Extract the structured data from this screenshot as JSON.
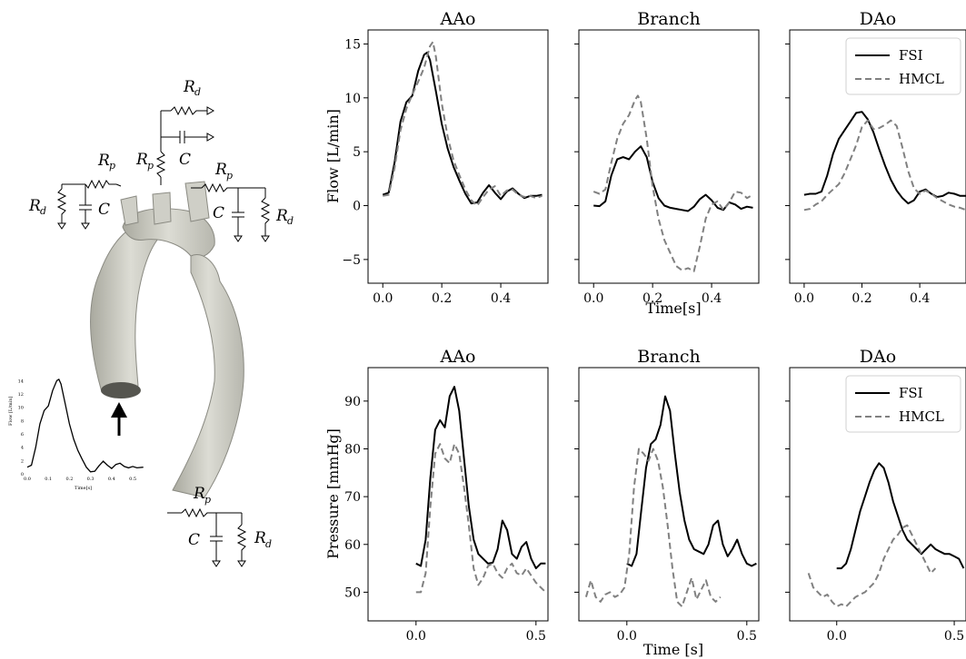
{
  "illustration": {
    "circuit_labels": {
      "rd": "R",
      "rd_sub": "d",
      "rp": "R",
      "rp_sub": "p",
      "c": "C"
    },
    "inset": {
      "xlabel": "Time[s]",
      "ylabel": "Flow [L/min]",
      "xticks": [
        "0.0",
        "0.1",
        "0.2",
        "0.3",
        "0.4",
        "0.5"
      ],
      "yticks": [
        "0",
        "2",
        "4",
        "6",
        "8",
        "10",
        "12",
        "14"
      ],
      "x": [
        0.0,
        0.02,
        0.04,
        0.06,
        0.08,
        0.1,
        0.12,
        0.14,
        0.15,
        0.16,
        0.18,
        0.2,
        0.22,
        0.24,
        0.26,
        0.28,
        0.3,
        0.32,
        0.34,
        0.36,
        0.38,
        0.4,
        0.42,
        0.44,
        0.46,
        0.48,
        0.5,
        0.52,
        0.55
      ],
      "y": [
        1.0,
        1.3,
        4.0,
        7.5,
        9.5,
        10.2,
        12.5,
        14.0,
        14.2,
        13.5,
        10.5,
        7.5,
        5.2,
        3.5,
        2.2,
        1.0,
        0.3,
        0.4,
        1.2,
        1.9,
        1.3,
        0.8,
        1.4,
        1.6,
        1.1,
        0.9,
        1.1,
        0.9,
        1.0
      ]
    }
  },
  "legend": {
    "series": [
      "FSI",
      "HMCL"
    ]
  },
  "chart_data": [
    {
      "type": "line",
      "title": "AAo",
      "xlabel": "",
      "ylabel": "Flow [L/min]",
      "xlim": [
        -0.05,
        0.56
      ],
      "ylim": [
        -7.2,
        16.3
      ],
      "xticks": [
        0.0,
        0.2,
        0.4
      ],
      "xtick_labels": [
        "0.0",
        "0.2",
        "0.4"
      ],
      "yticks": [
        -5,
        0,
        5,
        10,
        15
      ],
      "ytick_labels": [
        "−5",
        "0",
        "5",
        "10",
        "15"
      ],
      "legend": false,
      "series": [
        {
          "name": "FSI",
          "style": "solid",
          "x": [
            0.0,
            0.02,
            0.04,
            0.06,
            0.08,
            0.1,
            0.12,
            0.14,
            0.15,
            0.16,
            0.18,
            0.2,
            0.22,
            0.24,
            0.26,
            0.28,
            0.3,
            0.32,
            0.34,
            0.36,
            0.38,
            0.4,
            0.42,
            0.44,
            0.46,
            0.48,
            0.5,
            0.52,
            0.54
          ],
          "y": [
            1.0,
            1.2,
            4.0,
            7.8,
            9.6,
            10.2,
            12.5,
            14.0,
            14.2,
            13.5,
            10.6,
            7.6,
            5.3,
            3.6,
            2.3,
            1.1,
            0.2,
            0.3,
            1.2,
            1.9,
            1.2,
            0.6,
            1.3,
            1.6,
            1.1,
            0.7,
            0.9,
            0.9,
            1.0
          ]
        },
        {
          "name": "HMCL",
          "style": "dashed",
          "x": [
            0.0,
            0.02,
            0.04,
            0.06,
            0.08,
            0.1,
            0.12,
            0.14,
            0.16,
            0.17,
            0.18,
            0.2,
            0.22,
            0.24,
            0.26,
            0.28,
            0.3,
            0.32,
            0.34,
            0.36,
            0.38,
            0.4,
            0.42,
            0.44,
            0.46,
            0.48,
            0.5,
            0.52,
            0.54
          ],
          "y": [
            0.9,
            1.0,
            3.5,
            7.0,
            9.0,
            10.3,
            11.5,
            12.8,
            14.8,
            15.2,
            13.8,
            9.5,
            6.4,
            4.2,
            2.8,
            1.5,
            0.5,
            0.0,
            0.8,
            1.5,
            1.8,
            0.9,
            1.4,
            1.5,
            1.0,
            0.8,
            0.9,
            0.7,
            0.9
          ]
        }
      ]
    },
    {
      "type": "line",
      "title": "Branch",
      "xlabel": "Time[s]",
      "ylabel": "",
      "xlim": [
        -0.05,
        0.56
      ],
      "ylim": [
        -7.2,
        16.3
      ],
      "xticks": [
        0.0,
        0.2,
        0.4
      ],
      "xtick_labels": [
        "0.0",
        "0.2",
        "0.4"
      ],
      "yticks": [
        -5,
        0,
        5,
        10,
        15
      ],
      "ytick_labels": [],
      "legend": false,
      "series": [
        {
          "name": "FSI",
          "style": "solid",
          "x": [
            0.0,
            0.02,
            0.04,
            0.06,
            0.08,
            0.1,
            0.12,
            0.14,
            0.16,
            0.18,
            0.2,
            0.22,
            0.24,
            0.26,
            0.28,
            0.3,
            0.32,
            0.34,
            0.36,
            0.38,
            0.4,
            0.42,
            0.44,
            0.46,
            0.48,
            0.5,
            0.52,
            0.54
          ],
          "y": [
            0.0,
            -0.05,
            0.4,
            2.8,
            4.3,
            4.5,
            4.3,
            5.0,
            5.5,
            4.5,
            2.2,
            0.7,
            0.0,
            -0.2,
            -0.3,
            -0.4,
            -0.5,
            -0.1,
            0.6,
            1.0,
            0.5,
            -0.2,
            -0.4,
            0.3,
            0.1,
            -0.3,
            -0.1,
            -0.2
          ]
        },
        {
          "name": "HMCL",
          "style": "dashed",
          "x": [
            0.0,
            0.02,
            0.04,
            0.06,
            0.08,
            0.1,
            0.12,
            0.14,
            0.15,
            0.16,
            0.18,
            0.2,
            0.22,
            0.24,
            0.26,
            0.28,
            0.3,
            0.32,
            0.34,
            0.36,
            0.38,
            0.4,
            0.42,
            0.44,
            0.46,
            0.48,
            0.5,
            0.52,
            0.54
          ],
          "y": [
            1.3,
            1.1,
            1.5,
            4.0,
            6.2,
            7.6,
            8.4,
            9.8,
            10.2,
            9.6,
            6.2,
            1.8,
            -1.2,
            -3.2,
            -4.4,
            -5.6,
            -6.0,
            -5.8,
            -6.1,
            -3.8,
            -1.2,
            0.1,
            0.4,
            -0.4,
            0.3,
            1.3,
            1.2,
            0.7,
            1.0
          ]
        }
      ]
    },
    {
      "type": "line",
      "title": "DAo",
      "xlabel": "",
      "ylabel": "",
      "xlim": [
        -0.05,
        0.56
      ],
      "ylim": [
        -7.2,
        16.3
      ],
      "xticks": [
        0.0,
        0.2,
        0.4
      ],
      "xtick_labels": [
        "0.0",
        "0.2",
        "0.4"
      ],
      "yticks": [
        -5,
        0,
        5,
        10,
        15
      ],
      "ytick_labels": [],
      "legend": true,
      "series": [
        {
          "name": "FSI",
          "style": "solid",
          "x": [
            0.0,
            0.02,
            0.04,
            0.06,
            0.08,
            0.1,
            0.12,
            0.14,
            0.16,
            0.18,
            0.2,
            0.22,
            0.24,
            0.26,
            0.28,
            0.3,
            0.32,
            0.34,
            0.36,
            0.38,
            0.4,
            0.42,
            0.44,
            0.46,
            0.48,
            0.5,
            0.52,
            0.54,
            0.56
          ],
          "y": [
            1.0,
            1.1,
            1.1,
            1.3,
            2.8,
            4.8,
            6.2,
            7.0,
            7.8,
            8.6,
            8.7,
            8.0,
            6.8,
            5.2,
            3.7,
            2.4,
            1.4,
            0.7,
            0.2,
            0.5,
            1.3,
            1.5,
            1.1,
            0.8,
            0.9,
            1.2,
            1.1,
            0.9,
            0.9
          ]
        },
        {
          "name": "HMCL",
          "style": "dashed",
          "x": [
            0.0,
            0.02,
            0.04,
            0.06,
            0.08,
            0.1,
            0.12,
            0.14,
            0.16,
            0.18,
            0.2,
            0.22,
            0.24,
            0.26,
            0.28,
            0.3,
            0.32,
            0.34,
            0.36,
            0.38,
            0.4,
            0.42,
            0.44,
            0.46,
            0.48,
            0.5,
            0.52,
            0.54,
            0.56
          ],
          "y": [
            -0.4,
            -0.3,
            0.1,
            0.4,
            1.0,
            1.5,
            2.0,
            3.0,
            4.3,
            5.6,
            7.3,
            7.9,
            7.1,
            7.2,
            7.5,
            7.9,
            7.4,
            5.4,
            3.2,
            1.6,
            1.1,
            1.4,
            1.1,
            0.7,
            0.4,
            0.1,
            -0.1,
            -0.2,
            -0.4
          ]
        }
      ]
    },
    {
      "type": "line",
      "title": "AAo",
      "xlabel": "",
      "ylabel": "Pressure [mmHg]",
      "xlim": [
        -0.2,
        0.55
      ],
      "ylim": [
        44,
        97
      ],
      "xticks": [
        0.0,
        0.5
      ],
      "xtick_labels": [
        "0.0",
        "0.5"
      ],
      "yticks": [
        50,
        60,
        70,
        80,
        90
      ],
      "ytick_labels": [
        "50",
        "60",
        "70",
        "80",
        "90"
      ],
      "legend": false,
      "series": [
        {
          "name": "FSI",
          "style": "solid",
          "x": [
            0.0,
            0.02,
            0.04,
            0.06,
            0.08,
            0.1,
            0.12,
            0.14,
            0.16,
            0.18,
            0.2,
            0.22,
            0.24,
            0.26,
            0.28,
            0.3,
            0.32,
            0.34,
            0.36,
            0.38,
            0.4,
            0.42,
            0.44,
            0.46,
            0.48,
            0.5,
            0.52,
            0.54
          ],
          "y": [
            56,
            55.5,
            61,
            74,
            84,
            86,
            84.5,
            91,
            93,
            88,
            78,
            68,
            61,
            58,
            57,
            56,
            56.2,
            59,
            65,
            63,
            58,
            57,
            59.5,
            60.5,
            57,
            55,
            56,
            56
          ]
        },
        {
          "name": "HMCL",
          "style": "dashed",
          "x": [
            0.0,
            0.02,
            0.04,
            0.06,
            0.08,
            0.1,
            0.12,
            0.14,
            0.16,
            0.18,
            0.2,
            0.22,
            0.24,
            0.26,
            0.28,
            0.3,
            0.32,
            0.34,
            0.36,
            0.38,
            0.4,
            0.42,
            0.44,
            0.46,
            0.48,
            0.5,
            0.52,
            0.54
          ],
          "y": [
            50,
            50,
            54,
            68,
            79,
            81,
            78,
            77,
            81,
            79,
            72,
            64,
            55,
            51.5,
            53,
            55.5,
            56,
            54,
            53,
            55,
            56,
            54,
            53.5,
            55,
            53.5,
            52,
            51,
            50
          ]
        }
      ]
    },
    {
      "type": "line",
      "title": "Branch",
      "xlabel": "Time [s]",
      "ylabel": "",
      "xlim": [
        -0.2,
        0.55
      ],
      "ylim": [
        44,
        97
      ],
      "xticks": [
        0.0,
        0.5
      ],
      "xtick_labels": [
        "0.0",
        "0.5"
      ],
      "yticks": [
        50,
        60,
        70,
        80,
        90
      ],
      "ytick_labels": [],
      "legend": false,
      "series": [
        {
          "name": "FSI",
          "style": "solid",
          "x": [
            0.0,
            0.02,
            0.04,
            0.06,
            0.08,
            0.1,
            0.12,
            0.14,
            0.16,
            0.18,
            0.2,
            0.22,
            0.24,
            0.26,
            0.28,
            0.3,
            0.32,
            0.34,
            0.36,
            0.38,
            0.4,
            0.42,
            0.44,
            0.46,
            0.48,
            0.5,
            0.52,
            0.54
          ],
          "y": [
            56,
            55.5,
            58,
            67,
            76,
            81,
            82,
            85,
            91,
            88,
            79,
            71,
            65,
            61,
            59,
            58.5,
            58,
            60,
            64,
            65,
            60,
            57.5,
            59,
            61,
            58,
            56,
            55.5,
            56
          ]
        },
        {
          "name": "HMCL",
          "style": "dashed",
          "x": [
            -0.17,
            -0.15,
            -0.13,
            -0.11,
            -0.09,
            -0.07,
            -0.05,
            -0.03,
            -0.01,
            0.01,
            0.03,
            0.05,
            0.07,
            0.09,
            0.11,
            0.13,
            0.15,
            0.17,
            0.19,
            0.21,
            0.23,
            0.25,
            0.27,
            0.29,
            0.31,
            0.33,
            0.35,
            0.37,
            0.39
          ],
          "y": [
            49,
            52.5,
            49,
            48,
            49.5,
            50,
            49,
            49.5,
            51,
            58,
            72,
            80,
            79,
            77.5,
            80,
            77.5,
            72,
            64,
            55,
            48,
            47,
            50,
            53,
            48.5,
            50.5,
            52.5,
            49,
            48,
            49
          ]
        }
      ]
    },
    {
      "type": "line",
      "title": "DAo",
      "xlabel": "",
      "ylabel": "",
      "xlim": [
        -0.2,
        0.55
      ],
      "ylim": [
        44,
        97
      ],
      "xticks": [
        0.0,
        0.5
      ],
      "xtick_labels": [
        "0.0",
        "0.5"
      ],
      "yticks": [
        50,
        60,
        70,
        80,
        90
      ],
      "ytick_labels": [],
      "legend": true,
      "series": [
        {
          "name": "FSI",
          "style": "solid",
          "x": [
            0.0,
            0.02,
            0.04,
            0.06,
            0.08,
            0.1,
            0.12,
            0.14,
            0.16,
            0.18,
            0.2,
            0.22,
            0.24,
            0.26,
            0.28,
            0.3,
            0.32,
            0.34,
            0.36,
            0.38,
            0.4,
            0.42,
            0.44,
            0.46,
            0.48,
            0.5,
            0.52,
            0.54
          ],
          "y": [
            55,
            55,
            56,
            59,
            63,
            67,
            70,
            73,
            75.5,
            77,
            76,
            73,
            69,
            66,
            63,
            61,
            60,
            59,
            58,
            59,
            60,
            59,
            58.5,
            58,
            58,
            57.5,
            57,
            55
          ]
        },
        {
          "name": "HMCL",
          "style": "dashed",
          "x": [
            -0.12,
            -0.1,
            -0.08,
            -0.06,
            -0.04,
            -0.02,
            0.0,
            0.02,
            0.04,
            0.06,
            0.08,
            0.1,
            0.12,
            0.14,
            0.16,
            0.18,
            0.2,
            0.22,
            0.24,
            0.26,
            0.28,
            0.3,
            0.32,
            0.34,
            0.36,
            0.38,
            0.4,
            0.42
          ],
          "y": [
            54,
            51,
            50,
            49,
            49.5,
            48,
            47,
            47.5,
            47,
            48,
            49,
            49.5,
            50,
            51,
            52,
            54,
            57,
            59,
            61,
            62,
            63.5,
            64,
            62,
            60,
            58,
            56,
            54,
            55
          ]
        }
      ]
    }
  ]
}
